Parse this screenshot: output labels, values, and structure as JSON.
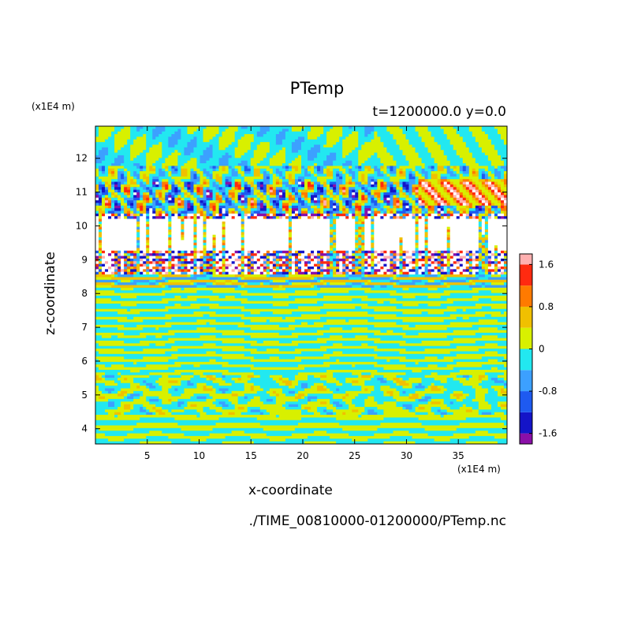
{
  "chart_data": {
    "type": "heatmap",
    "title": "PTemp",
    "time_label": "t=1200000.0 y=0.0",
    "xlabel": "x-coordinate",
    "ylabel": "z-coordinate",
    "x_unit": "(x1E4 m)",
    "y_unit": "(x1E4 m)",
    "x_ticks": [
      5,
      10,
      15,
      20,
      25,
      30,
      35
    ],
    "y_ticks": [
      4,
      5,
      6,
      7,
      8,
      9,
      10,
      11,
      12
    ],
    "xlim": [
      0,
      39.7
    ],
    "ylim": [
      3.55,
      12.95
    ],
    "colorbar": {
      "levels": [
        -1.8,
        -1.6,
        -1.2,
        -0.8,
        -0.4,
        0,
        0.4,
        0.8,
        1.2,
        1.6,
        1.8
      ],
      "colors": [
        "#8a0fa8",
        "#1414c8",
        "#1e5af0",
        "#3ca0ff",
        "#22e8f0",
        "#d8f000",
        "#f0c000",
        "#ff7a00",
        "#ff2a10",
        "#ffb0b0"
      ],
      "tick_labels": [
        "1.6",
        "0.8",
        "0",
        "-0.8",
        "-1.6"
      ],
      "tick_values": [
        1.6,
        0.8,
        0,
        -0.8,
        -1.6
      ]
    },
    "regions": [
      {
        "z_range": [
          11.8,
          12.95
        ],
        "description": "mostly cyan / yellow-green small-amplitude waves"
      },
      {
        "z_range": [
          10.4,
          11.8
        ],
        "description": "blue (-1.2) and red (+1.2) patches"
      },
      {
        "z_range": [
          8.6,
          10.4
        ],
        "description": "dense saturated contours / white"
      },
      {
        "z_range": [
          5.6,
          8.6
        ],
        "description": "alternating yellow-green and cyan bands"
      },
      {
        "z_range": [
          3.55,
          5.6
        ],
        "description": "convective cyan / yellow-green cells"
      }
    ]
  },
  "footer": {
    "file_path": "./TIME_00810000-01200000/PTemp.nc"
  }
}
